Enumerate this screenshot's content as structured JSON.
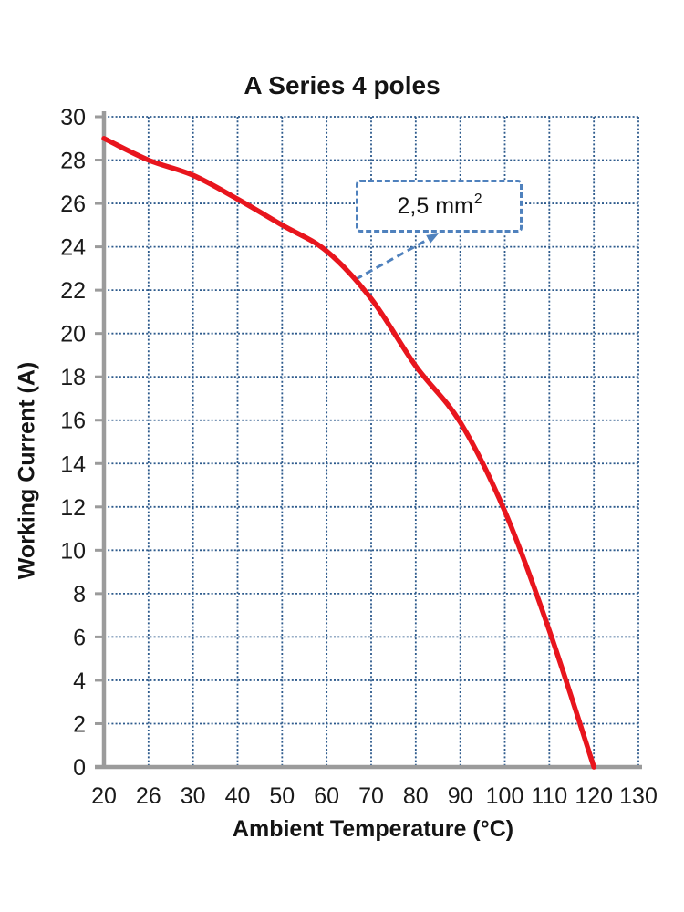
{
  "chart_data": {
    "type": "line",
    "title": "A Series 4 poles",
    "xlabel": "Ambient Temperature (°C)",
    "ylabel": "Working Current (A)",
    "categories": [
      20,
      26,
      30,
      40,
      50,
      60,
      70,
      80,
      90,
      100,
      110,
      120,
      130
    ],
    "x_tick_labels": [
      "20",
      "26",
      "30",
      "40",
      "50",
      "60",
      "70",
      "80",
      "90",
      "100",
      "110",
      "120",
      "130"
    ],
    "y_tick_labels": [
      "0",
      "2",
      "4",
      "6",
      "8",
      "10",
      "12",
      "14",
      "16",
      "18",
      "20",
      "22",
      "24",
      "26",
      "28",
      "30"
    ],
    "ylim": [
      0,
      30
    ],
    "y_tick_step": 2,
    "grid": "dotted-blue-both-axes",
    "legend": "none",
    "series": [
      {
        "name": "2,5 mm²",
        "values": [
          29,
          28,
          27.3,
          26.2,
          25.0,
          23.8,
          21.6,
          18.5,
          15.9,
          11.8,
          6.3,
          0,
          null
        ]
      }
    ],
    "annotation": {
      "text": "2,5 mm",
      "sup": "2",
      "full_text": "2,5 mm²",
      "points_to": {
        "temp": 66.5,
        "current": 22.5
      }
    },
    "colors": {
      "curve": "#e8151d",
      "grid": "#2d5a8c",
      "axis": "#9b9b9b",
      "callout": "#4f81bd",
      "text": "#1a1a1a"
    }
  }
}
